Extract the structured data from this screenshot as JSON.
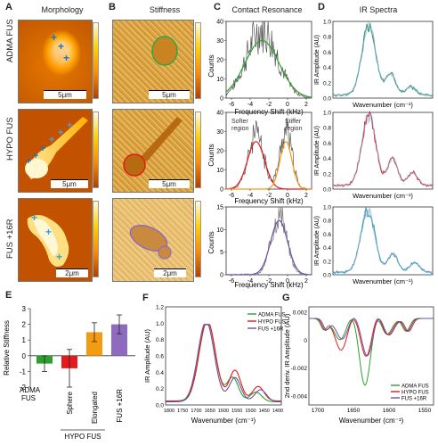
{
  "panels": {
    "A": "A",
    "B": "B",
    "C": "C",
    "D": "D",
    "E": "E",
    "F": "F",
    "G": "G"
  },
  "column_titles": {
    "morphology": "Morphology",
    "stiffness": "Stiffness",
    "contact": "Contact Resonance",
    "ir": "IR Spectra"
  },
  "row_labels": [
    "ADMA FUS",
    "HYPO FUS",
    "FUS +16R"
  ],
  "scale_bars": [
    "5μm",
    "5μm",
    "5μm",
    "5μm",
    "2μm",
    "2μm"
  ],
  "contact": {
    "ylabel": "Counts",
    "xlabel": "Frequency Shift (kHz)",
    "xticks": [
      "-6",
      "-4",
      "-2",
      "0",
      "2"
    ],
    "yticks_top": [
      "40",
      "30",
      "20",
      "10",
      "0"
    ],
    "yticks_mid": [
      "40",
      "30",
      "20",
      "10",
      "0"
    ],
    "yticks_bot": [
      "15",
      "10",
      "5",
      "0"
    ],
    "softer": "Softer\nregion",
    "stiffer": "Stiffer\nregion"
  },
  "ir": {
    "ylabel": "IR Amplitude (AU)",
    "xlabel": "Wavenumber (cm⁻¹)",
    "yticks": [
      "1.0",
      "0.8",
      "0.6",
      "0.4",
      "0.2",
      "0.0"
    ]
  },
  "stiffness_chart": {
    "ylabel": "Relative Stiffness",
    "yticks": [
      "3",
      "2",
      "1",
      "0",
      "-1",
      "-2"
    ],
    "categories": [
      "ADMA FUS",
      "Sphere",
      "Elongated",
      "FUS +16R"
    ],
    "group_label": "HYPO FUS",
    "colors": [
      "#2ca02c",
      "#e41a1c",
      "#f39c12",
      "#8e6bbf"
    ]
  },
  "spectraF": {
    "ylabel": "IR Amplitude (AU)",
    "xlabel": "Wavenumber (cm⁻¹)",
    "yticks": [
      "1.2",
      "1.0",
      "0.8",
      "0.6",
      "0.4",
      "0.2",
      "0.0"
    ],
    "xticks": [
      "1800",
      "1750",
      "1700",
      "1650",
      "1600",
      "1550",
      "1500",
      "1450",
      "1400"
    ],
    "legend": [
      "ADMA FUS",
      "HYPO FUS",
      "FUS +16R"
    ]
  },
  "spectraG": {
    "ylabel": "2nd deriv. IR Amplitude (AU)",
    "xlabel": "Wavenumber (cm⁻¹)",
    "yticks": [
      "0.002",
      "0",
      "-0.002",
      "-0.004"
    ],
    "xticks": [
      "1700",
      "1650",
      "1600",
      "1550"
    ],
    "legend": [
      "ADMA FUS",
      "HYPO FUS",
      "FUS +16R"
    ]
  },
  "chart_data": [
    {
      "type": "bar",
      "title": "",
      "categories": [
        "ADMA FUS",
        "Sphere",
        "Elongated",
        "FUS +16R"
      ],
      "values": [
        -0.5,
        -0.8,
        1.5,
        2.0
      ],
      "errors": [
        0.5,
        1.2,
        0.6,
        0.6
      ],
      "ylabel": "Relative Stiffness",
      "ylim": [
        -2,
        3
      ]
    },
    {
      "type": "line",
      "title": "",
      "xlabel": "Wavenumber (cm⁻¹)",
      "ylabel": "IR Amplitude (AU)",
      "xlim": [
        1800,
        1400
      ],
      "ylim": [
        0,
        1.2
      ],
      "series": [
        {
          "name": "ADMA FUS"
        },
        {
          "name": "HYPO FUS"
        },
        {
          "name": "FUS +16R"
        }
      ]
    },
    {
      "type": "line",
      "title": "",
      "xlabel": "Wavenumber (cm⁻¹)",
      "ylabel": "2nd deriv. IR Amplitude (AU)",
      "series": [
        {
          "name": "ADMA FUS"
        },
        {
          "name": "HYPO FUS"
        },
        {
          "name": "FUS +16R"
        }
      ]
    }
  ]
}
